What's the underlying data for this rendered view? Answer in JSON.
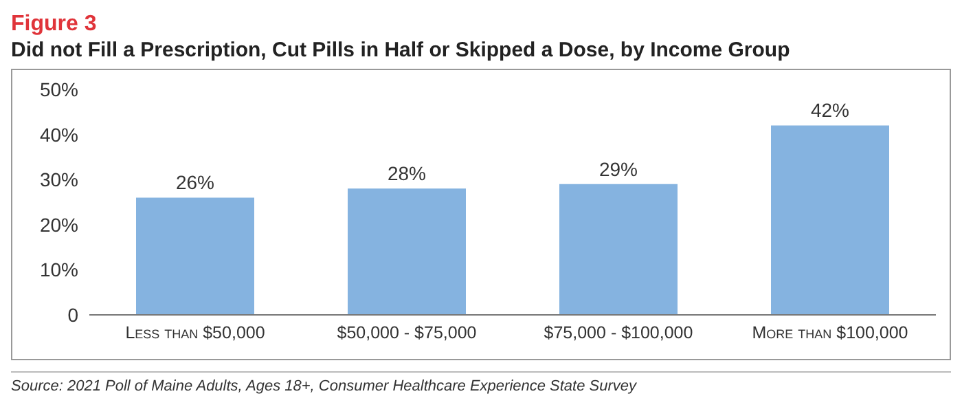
{
  "chart_data": {
    "type": "bar",
    "title": "Figure 3",
    "subtitle": "Did not Fill a Prescription, Cut Pills in Half or Skipped a Dose, by Income Group",
    "categories": [
      "Less than $50,000",
      "$50,000 - $75,000",
      "$75,000 - $100,000",
      "More than $100,000"
    ],
    "values": [
      26,
      28,
      29,
      42
    ],
    "value_labels": [
      "26%",
      "28%",
      "29%",
      "42%"
    ],
    "color": "#85b3e0",
    "ylim": [
      0,
      50
    ],
    "yticks": [
      {
        "value": 0,
        "label": "0"
      },
      {
        "value": 10,
        "label": "10%"
      },
      {
        "value": 20,
        "label": "20%"
      },
      {
        "value": 30,
        "label": "30%"
      },
      {
        "value": 40,
        "label": "40%"
      },
      {
        "value": 50,
        "label": "50%"
      }
    ],
    "grid": false,
    "legend": false,
    "annotations": [
      "Source: 2021 Poll of Maine Adults, Ages 18+, Consumer Healthcare Experience State Survey"
    ]
  }
}
